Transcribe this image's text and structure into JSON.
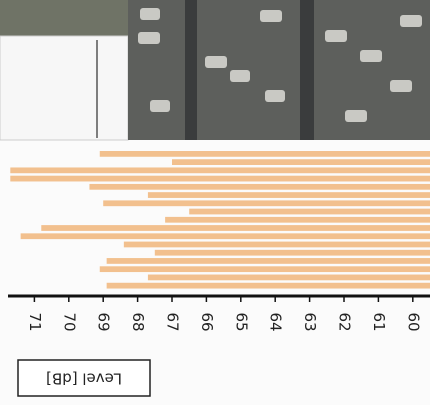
{
  "chart_data": {
    "type": "bar",
    "orientation": "horizontal",
    "xlabel": "Level [dB]",
    "categories": [
      null,
      null,
      null,
      null,
      null,
      null,
      null,
      null,
      null,
      null,
      null,
      null,
      null,
      null,
      null,
      null,
      null
    ],
    "values": [
      69.1,
      67.0,
      71.7,
      71.7,
      69.4,
      67.7,
      69.0,
      66.5,
      67.2,
      70.8,
      71.4,
      68.4,
      67.5,
      68.9,
      69.1,
      67.7,
      68.9
    ],
    "color": "#f2c08e",
    "xlim": [
      72,
      59.5
    ],
    "xticks": [
      71,
      70,
      69,
      68,
      67,
      66,
      65,
      64,
      63,
      62,
      61,
      60
    ]
  }
}
